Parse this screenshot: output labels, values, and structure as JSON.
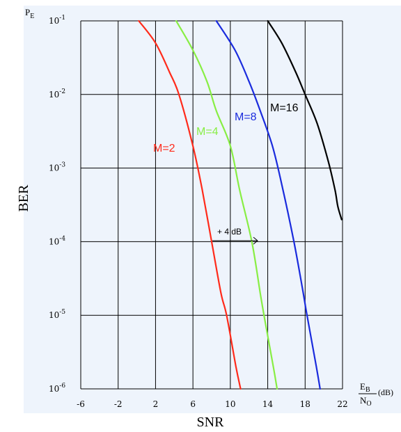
{
  "chart_data": {
    "type": "line",
    "xlabel": "SNR",
    "ylabel": "BER",
    "y_axis_marker": "P",
    "y_axis_marker_sub": "E",
    "x_unit_numerator": "E",
    "x_unit_numerator_sub": "B",
    "x_unit_denominator": "N",
    "x_unit_denominator_sub": "O",
    "x_unit_suffix": "(dB)",
    "xlim": [
      -6,
      22
    ],
    "ylim": [
      1e-06,
      0.1
    ],
    "yscale": "log",
    "grid": true,
    "x_ticks": [
      "-6",
      "-2",
      "2",
      "6",
      "10",
      "14",
      "18",
      "22"
    ],
    "y_ticks": [
      {
        "base": "10",
        "exp": "-1"
      },
      {
        "base": "10",
        "exp": "-2"
      },
      {
        "base": "10",
        "exp": "-3"
      },
      {
        "base": "10",
        "exp": "-4"
      },
      {
        "base": "10",
        "exp": "-5"
      },
      {
        "base": "10",
        "exp": "-6"
      }
    ],
    "series": [
      {
        "name": "M=2",
        "color": "#ff2a1a",
        "points": [
          [
            0.2,
            0.1
          ],
          [
            2.0,
            0.05
          ],
          [
            3.5,
            0.02
          ],
          [
            4.5,
            0.01
          ],
          [
            6.0,
            0.002
          ],
          [
            7.0,
            0.0005
          ],
          [
            8.0,
            0.0001
          ],
          [
            9.0,
            2e-05
          ],
          [
            9.6,
            1e-05
          ],
          [
            10.6,
            2e-06
          ],
          [
            11.1,
            1e-06
          ]
        ]
      },
      {
        "name": "M=4",
        "color": "#88ee44",
        "points": [
          [
            4.2,
            0.1
          ],
          [
            6.0,
            0.04
          ],
          [
            7.5,
            0.015
          ],
          [
            8.5,
            0.006
          ],
          [
            10.0,
            0.002
          ],
          [
            11.0,
            0.0005
          ],
          [
            12.3,
            0.0001
          ],
          [
            13.2,
            2e-05
          ],
          [
            13.6,
            1e-05
          ],
          [
            14.6,
            2e-06
          ],
          [
            15.0,
            1e-06
          ]
        ]
      },
      {
        "name": "M=8",
        "color": "#1a2bdd",
        "points": [
          [
            8.5,
            0.1
          ],
          [
            10.5,
            0.04
          ],
          [
            12.0,
            0.015
          ],
          [
            13.2,
            0.006
          ],
          [
            14.5,
            0.002
          ],
          [
            15.5,
            0.0006
          ],
          [
            16.8,
            0.0001
          ],
          [
            17.8,
            2e-05
          ],
          [
            18.2,
            1e-05
          ],
          [
            19.2,
            2e-06
          ],
          [
            19.6,
            1e-06
          ]
        ]
      },
      {
        "name": "M=16",
        "color": "#000000",
        "points": [
          [
            14.0,
            0.1
          ],
          [
            15.5,
            0.05
          ],
          [
            17.0,
            0.02
          ],
          [
            18.0,
            0.01
          ],
          [
            19.3,
            0.004
          ],
          [
            20.5,
            0.0012
          ],
          [
            21.2,
            0.0005
          ],
          [
            21.5,
            0.0003
          ],
          [
            21.9,
            0.0002
          ]
        ]
      }
    ],
    "annotations": [
      {
        "text": "+ 4 dB",
        "x": 9.5,
        "y": 0.0001
      }
    ]
  }
}
